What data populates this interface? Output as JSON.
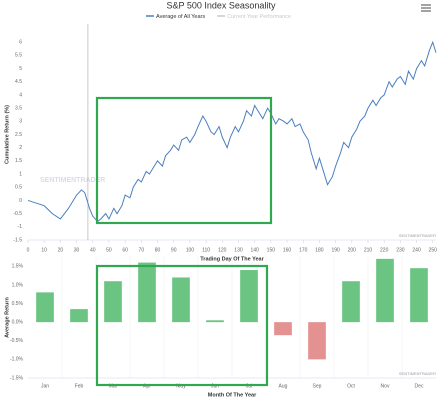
{
  "chart_data": [
    {
      "type": "line",
      "title": "S&P 500 Index Seasonality",
      "xlabel": "Trading Day Of The Year",
      "ylabel": "Cumulative Return (%)",
      "watermark": "SENTIMENTRADER",
      "credit": "SENTIMENTRADER",
      "xlim": [
        0,
        252
      ],
      "ylim": [
        -1.5,
        6.5
      ],
      "xticks": [
        0,
        10,
        20,
        30,
        40,
        50,
        60,
        70,
        80,
        90,
        100,
        110,
        120,
        130,
        140,
        150,
        160,
        170,
        180,
        190,
        200,
        210,
        220,
        230,
        240,
        250
      ],
      "yticks": [
        -1.5,
        -1,
        -0.5,
        0,
        0.5,
        1,
        1.5,
        2,
        2.5,
        3,
        3.5,
        4,
        4.5,
        5,
        5.5,
        6
      ],
      "grid": false,
      "vline": 37,
      "series": [
        {
          "name": "Average of All Years",
          "color": "#4a7fc1",
          "x": [
            0,
            5,
            10,
            15,
            20,
            25,
            30,
            33,
            35,
            38,
            40,
            43,
            45,
            48,
            50,
            53,
            55,
            58,
            60,
            63,
            65,
            68,
            70,
            73,
            75,
            78,
            80,
            83,
            85,
            88,
            90,
            93,
            95,
            98,
            100,
            103,
            105,
            108,
            110,
            113,
            115,
            118,
            120,
            123,
            125,
            128,
            130,
            133,
            135,
            138,
            140,
            143,
            145,
            148,
            150,
            153,
            155,
            158,
            160,
            163,
            165,
            168,
            170,
            173,
            175,
            178,
            180,
            183,
            185,
            188,
            190,
            193,
            195,
            198,
            200,
            203,
            205,
            208,
            210,
            213,
            215,
            218,
            220,
            223,
            225,
            228,
            230,
            233,
            235,
            238,
            240,
            243,
            245,
            248,
            250,
            252
          ],
          "values": [
            0,
            -0.1,
            -0.2,
            -0.5,
            -0.7,
            -0.3,
            0.2,
            0.4,
            0.3,
            -0.3,
            -0.6,
            -0.8,
            -0.7,
            -0.5,
            -0.7,
            -0.3,
            -0.5,
            -0.2,
            0.2,
            0.1,
            0.5,
            0.8,
            0.7,
            1.1,
            1.0,
            1.3,
            1.5,
            1.3,
            1.7,
            1.9,
            2.1,
            1.9,
            2.3,
            2.4,
            2.2,
            2.5,
            2.8,
            3.2,
            3.0,
            2.6,
            2.5,
            2.8,
            2.4,
            2.0,
            2.4,
            2.8,
            2.6,
            3.0,
            3.4,
            3.2,
            3.6,
            3.3,
            3.1,
            3.5,
            3.3,
            2.9,
            3.1,
            3.0,
            2.9,
            3.1,
            2.8,
            2.9,
            2.6,
            2.3,
            1.8,
            1.2,
            1.6,
            1.0,
            0.6,
            0.9,
            1.3,
            1.8,
            2.2,
            2.0,
            2.4,
            2.7,
            3.0,
            3.2,
            3.5,
            3.8,
            3.6,
            3.9,
            4.0,
            4.5,
            4.3,
            4.6,
            4.7,
            4.4,
            4.9,
            4.6,
            5.0,
            5.3,
            5.1,
            5.7,
            6.0,
            5.6
          ]
        },
        {
          "name": "Current Year Performance",
          "color": "#c8c8c8",
          "x": [],
          "values": []
        }
      ]
    },
    {
      "type": "bar",
      "xlabel": "Month Of The Year",
      "ylabel": "Average Return",
      "credit": "SENTIMENTRADER",
      "categories": [
        "Jan",
        "Feb",
        "Mar",
        "Apr",
        "May",
        "Jun",
        "Jul",
        "Aug",
        "Sep",
        "Oct",
        "Nov",
        "Dec"
      ],
      "values": [
        0.8,
        0.35,
        1.1,
        1.6,
        1.2,
        0.05,
        1.4,
        -0.35,
        -1.0,
        1.1,
        1.7,
        1.45
      ],
      "color": "#6cc483",
      "negative_color": "#e39191",
      "ylim": [
        -1.5,
        1.75
      ],
      "yticks": [
        {
          "value": -1.5,
          "label": "-1.5%"
        },
        {
          "value": -1,
          "label": "-1.0%"
        },
        {
          "value": -0.5,
          "label": "-0.5%"
        },
        {
          "value": 0,
          "label": "0.0%"
        },
        {
          "value": 0.5,
          "label": "0.5%"
        },
        {
          "value": 1,
          "label": "1.0%"
        },
        {
          "value": 1.5,
          "label": "1.5%"
        }
      ],
      "grid": false
    }
  ]
}
